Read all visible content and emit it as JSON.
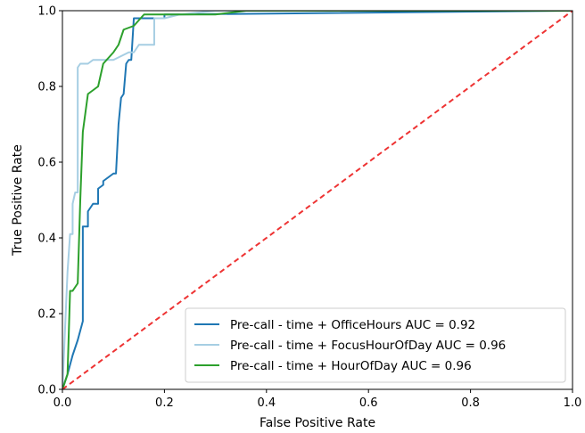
{
  "chart_data": {
    "type": "line",
    "title": "",
    "xlabel": "False Positive Rate",
    "ylabel": "True Positive Rate",
    "xlim": [
      0.0,
      1.0
    ],
    "ylim": [
      0.0,
      1.0
    ],
    "xticks": [
      "0.0",
      "0.2",
      "0.4",
      "0.6",
      "0.8",
      "1.0"
    ],
    "yticks": [
      "0.0",
      "0.2",
      "0.4",
      "0.6",
      "0.8",
      "1.0"
    ],
    "grid": false,
    "legend_position": "lower-right",
    "series": [
      {
        "name": "Pre-call - time + OfficeHours AUC = 0.92",
        "color": "#1f77b4",
        "x": [
          0.0,
          0.01,
          0.02,
          0.03,
          0.04,
          0.04,
          0.05,
          0.05,
          0.06,
          0.07,
          0.07,
          0.08,
          0.08,
          0.09,
          0.1,
          0.105,
          0.11,
          0.115,
          0.12,
          0.125,
          0.13,
          0.135,
          0.14,
          0.14,
          0.16,
          0.2,
          0.2,
          0.22,
          1.0
        ],
        "y": [
          0.0,
          0.04,
          0.09,
          0.13,
          0.18,
          0.43,
          0.43,
          0.47,
          0.49,
          0.49,
          0.53,
          0.54,
          0.55,
          0.56,
          0.57,
          0.57,
          0.7,
          0.77,
          0.78,
          0.86,
          0.87,
          0.87,
          0.98,
          0.98,
          0.98,
          0.98,
          0.99,
          0.99,
          1.0
        ]
      },
      {
        "name": "Pre-call - time + FocusHourOfDay AUC = 0.96",
        "color": "#a6cee3",
        "x": [
          0.0,
          0.01,
          0.012,
          0.015,
          0.02,
          0.02,
          0.025,
          0.03,
          0.03,
          0.035,
          0.04,
          0.05,
          0.06,
          0.09,
          0.1,
          0.13,
          0.14,
          0.15,
          0.18,
          0.18,
          0.2,
          0.23,
          0.3,
          1.0
        ],
        "y": [
          0.0,
          0.31,
          0.35,
          0.41,
          0.41,
          0.49,
          0.52,
          0.52,
          0.85,
          0.86,
          0.86,
          0.86,
          0.87,
          0.87,
          0.87,
          0.89,
          0.89,
          0.91,
          0.91,
          0.98,
          0.98,
          0.99,
          1.0,
          1.0
        ]
      },
      {
        "name": "Pre-call - time + HourOfDay AUC = 0.96",
        "color": "#2ca02c",
        "x": [
          0.0,
          0.01,
          0.015,
          0.02,
          0.03,
          0.035,
          0.04,
          0.05,
          0.06,
          0.07,
          0.08,
          0.1,
          0.11,
          0.12,
          0.14,
          0.16,
          0.2,
          0.3,
          0.36,
          0.4,
          1.0
        ],
        "y": [
          0.0,
          0.04,
          0.26,
          0.26,
          0.28,
          0.5,
          0.68,
          0.78,
          0.79,
          0.8,
          0.86,
          0.89,
          0.91,
          0.95,
          0.96,
          0.99,
          0.99,
          0.99,
          1.0,
          1.0,
          1.0
        ]
      },
      {
        "name": "",
        "color": "#ee3333",
        "dashed": true,
        "x": [
          0.0,
          1.0
        ],
        "y": [
          0.0,
          1.0
        ]
      }
    ]
  }
}
